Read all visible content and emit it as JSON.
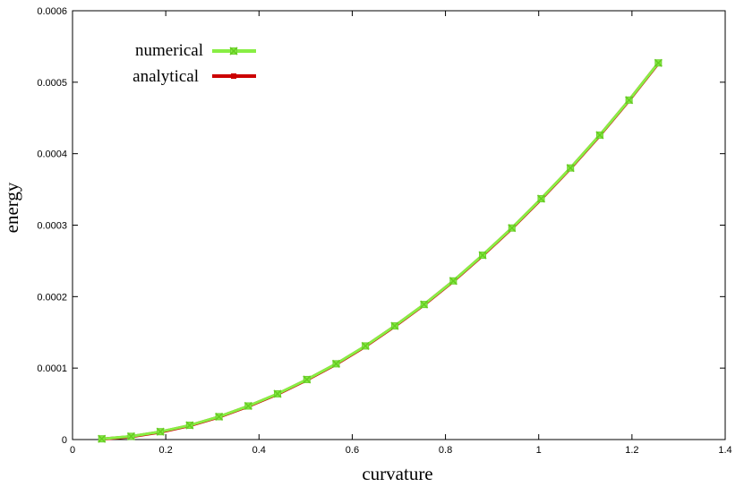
{
  "chart_data": {
    "type": "line",
    "xlabel": "curvature",
    "ylabel": "energy",
    "xlim": [
      0,
      1.4
    ],
    "ylim": [
      0,
      0.0006
    ],
    "x_ticks": [
      "0",
      "0.2",
      "0.4",
      "0.6",
      "0.8",
      "1",
      "1.2",
      "1.4"
    ],
    "y_ticks": [
      "0",
      "0.0001",
      "0.0002",
      "0.0003",
      "0.0004",
      "0.0005",
      "0.0006"
    ],
    "grid": false,
    "legend_position": "top-left",
    "x": [
      0.0628,
      0.1257,
      0.1885,
      0.2513,
      0.3142,
      0.377,
      0.4398,
      0.5027,
      0.5655,
      0.6283,
      0.6912,
      0.754,
      0.8168,
      0.8796,
      0.9425,
      1.0053,
      1.0681,
      1.131,
      1.1938,
      1.2566
    ],
    "series": [
      {
        "name": "numerical",
        "color": "#88ee44",
        "marker": "x-square",
        "values": [
          1e-06,
          4.5e-06,
          1.1e-05,
          2e-05,
          3.2e-05,
          4.7e-05,
          6.4e-05,
          8.4e-05,
          0.000106,
          0.000131,
          0.000159,
          0.000189,
          0.000222,
          0.000258,
          0.000296,
          0.000337,
          0.00038,
          0.000426,
          0.000475,
          0.000527
        ]
      },
      {
        "name": "analytical",
        "color": "#cc0000",
        "marker": "square",
        "values": [
          6e-07,
          4.1e-06,
          1.05e-05,
          1.95e-05,
          3.15e-05,
          4.65e-05,
          6.35e-05,
          8.35e-05,
          0.0001055,
          0.0001305,
          0.0001585,
          0.0001885,
          0.0002215,
          0.0002575,
          0.0002955,
          0.0003365,
          0.0003795,
          0.0004255,
          0.0004745,
          0.0005265
        ]
      }
    ]
  }
}
